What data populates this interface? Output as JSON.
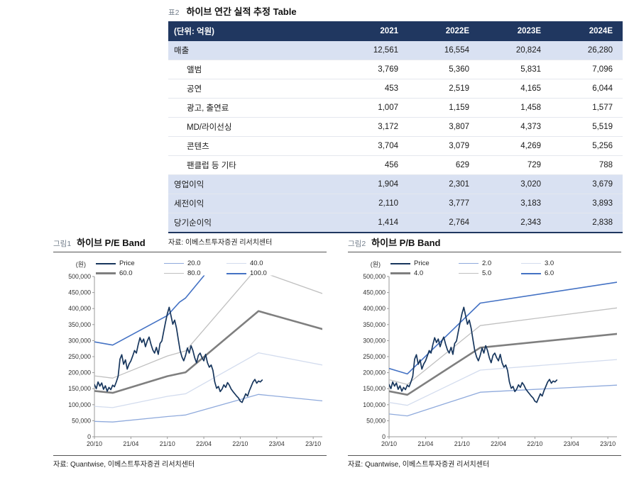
{
  "table_section": {
    "tag": "표2",
    "title": "하이브 연간 실적 추정 Table",
    "source": "자료: 이베스트투자증권 리서치센터",
    "table": {
      "unit_header": "(단위: 억원)",
      "col_headers": [
        "2021",
        "2022E",
        "2023E",
        "2024E"
      ],
      "rows": [
        {
          "label": "매출",
          "indent": false,
          "highlight": true,
          "values": [
            "12,561",
            "16,554",
            "20,824",
            "26,280"
          ]
        },
        {
          "label": "앨범",
          "indent": true,
          "highlight": false,
          "values": [
            "3,769",
            "5,360",
            "5,831",
            "7,096"
          ]
        },
        {
          "label": "공연",
          "indent": true,
          "highlight": false,
          "values": [
            "453",
            "2,519",
            "4,165",
            "6,044"
          ]
        },
        {
          "label": "광고, 출연료",
          "indent": true,
          "highlight": false,
          "values": [
            "1,007",
            "1,159",
            "1,458",
            "1,577"
          ]
        },
        {
          "label": "MD/라이선싱",
          "indent": true,
          "highlight": false,
          "values": [
            "3,172",
            "3,807",
            "4,373",
            "5,519"
          ]
        },
        {
          "label": "콘텐츠",
          "indent": true,
          "highlight": false,
          "values": [
            "3,704",
            "3,079",
            "4,269",
            "5,256"
          ]
        },
        {
          "label": "팬클럽 등 기타",
          "indent": true,
          "highlight": false,
          "values": [
            "456",
            "629",
            "729",
            "788"
          ]
        },
        {
          "label": "영업이익",
          "indent": false,
          "highlight": true,
          "values": [
            "1,904",
            "2,301",
            "3,020",
            "3,679"
          ]
        },
        {
          "label": "세전이익",
          "indent": false,
          "highlight": true,
          "values": [
            "2,110",
            "3,777",
            "3,183",
            "3,893"
          ]
        },
        {
          "label": "당기순이익",
          "indent": false,
          "highlight": true,
          "values": [
            "1,414",
            "2,764",
            "2,343",
            "2,838"
          ]
        }
      ]
    }
  },
  "shared": {
    "price_note": "HYBE share price, KRW, Oct 2020 - early 2023",
    "price": [
      [
        0,
        163000
      ],
      [
        0.3,
        150000
      ],
      [
        0.6,
        171000
      ],
      [
        0.9,
        158000
      ],
      [
        1.2,
        168000
      ],
      [
        1.5,
        148000
      ],
      [
        1.8,
        159000
      ],
      [
        2.1,
        142000
      ],
      [
        2.4,
        154000
      ],
      [
        2.7,
        147000
      ],
      [
        3,
        161000
      ],
      [
        3.3,
        156000
      ],
      [
        3.6,
        171000
      ],
      [
        3.9,
        189000
      ],
      [
        4.2,
        242000
      ],
      [
        4.5,
        256000
      ],
      [
        4.8,
        226000
      ],
      [
        5.1,
        240000
      ],
      [
        5.4,
        211000
      ],
      [
        5.7,
        227000
      ],
      [
        6,
        237000
      ],
      [
        6.3,
        252000
      ],
      [
        6.6,
        269000
      ],
      [
        6.9,
        261000
      ],
      [
        7.2,
        287000
      ],
      [
        7.5,
        309000
      ],
      [
        7.8,
        294000
      ],
      [
        8.1,
        305000
      ],
      [
        8.4,
        281000
      ],
      [
        8.7,
        299000
      ],
      [
        9,
        311000
      ],
      [
        9.3,
        289000
      ],
      [
        9.6,
        271000
      ],
      [
        9.9,
        261000
      ],
      [
        10.2,
        279000
      ],
      [
        10.5,
        257000
      ],
      [
        10.8,
        291000
      ],
      [
        11.1,
        299000
      ],
      [
        11.4,
        329000
      ],
      [
        11.7,
        358000
      ],
      [
        12,
        384000
      ],
      [
        12.3,
        404000
      ],
      [
        12.6,
        377000
      ],
      [
        12.9,
        351000
      ],
      [
        13.2,
        364000
      ],
      [
        13.5,
        339000
      ],
      [
        13.8,
        304000
      ],
      [
        14.1,
        269000
      ],
      [
        14.4,
        249000
      ],
      [
        14.7,
        237000
      ],
      [
        15,
        254000
      ],
      [
        15.3,
        277000
      ],
      [
        15.6,
        261000
      ],
      [
        15.9,
        284000
      ],
      [
        16.2,
        269000
      ],
      [
        16.5,
        247000
      ],
      [
        16.8,
        231000
      ],
      [
        17.1,
        254000
      ],
      [
        17.4,
        261000
      ],
      [
        17.7,
        247000
      ],
      [
        18,
        237000
      ],
      [
        18.3,
        257000
      ],
      [
        18.6,
        231000
      ],
      [
        18.9,
        217000
      ],
      [
        19.2,
        224000
      ],
      [
        19.5,
        207000
      ],
      [
        19.8,
        171000
      ],
      [
        20.1,
        151000
      ],
      [
        20.4,
        157000
      ],
      [
        20.7,
        141000
      ],
      [
        21,
        149000
      ],
      [
        21.3,
        162000
      ],
      [
        21.6,
        154000
      ],
      [
        21.9,
        169000
      ],
      [
        22.2,
        161000
      ],
      [
        22.5,
        149000
      ],
      [
        22.8,
        141000
      ],
      [
        23.1,
        134000
      ],
      [
        23.4,
        127000
      ],
      [
        23.7,
        121000
      ],
      [
        24,
        111000
      ],
      [
        24.3,
        107000
      ],
      [
        24.6,
        121000
      ],
      [
        24.9,
        134000
      ],
      [
        25.2,
        127000
      ],
      [
        25.5,
        144000
      ],
      [
        25.8,
        157000
      ],
      [
        26.1,
        171000
      ],
      [
        26.4,
        179000
      ],
      [
        26.7,
        167000
      ],
      [
        27,
        174000
      ],
      [
        27.3,
        171000
      ],
      [
        27.6,
        177000
      ]
    ]
  },
  "chart_data": [
    {
      "type": "line",
      "name": "pe-band-plot",
      "tag": "그림1",
      "title": "하이브 P/E Band",
      "ylabel": "(원)",
      "source": "자료: Quantwise, 이베스트투자증권 리서치센터",
      "x_unit": "months since 2020-10",
      "x_range": [
        0,
        37.5
      ],
      "y_range": [
        0,
        500000
      ],
      "y_ticks": [
        {
          "value": 0,
          "label": "0"
        },
        {
          "value": 50000,
          "label": "50,000"
        },
        {
          "value": 100000,
          "label": "100,000"
        },
        {
          "value": 150000,
          "label": "150,000"
        },
        {
          "value": 200000,
          "label": "200,000"
        },
        {
          "value": 250000,
          "label": "250,000"
        },
        {
          "value": 300000,
          "label": "300,000"
        },
        {
          "value": 350000,
          "label": "350,000"
        },
        {
          "value": 400000,
          "label": "400,000"
        },
        {
          "value": 450000,
          "label": "450,000"
        },
        {
          "value": 500000,
          "label": "500,000"
        }
      ],
      "x_ticks": [
        {
          "m": 0,
          "label": "20/10"
        },
        {
          "m": 6,
          "label": "21/04"
        },
        {
          "m": 12,
          "label": "21/10"
        },
        {
          "m": 18,
          "label": "22/04"
        },
        {
          "m": 24,
          "label": "22/10"
        },
        {
          "m": 30,
          "label": "23/04"
        },
        {
          "m": 36,
          "label": "23/10"
        }
      ],
      "series": [
        {
          "name": "Price",
          "color": "#17365d",
          "lw": 1.7,
          "points": "shared.price"
        },
        {
          "name": "20.0",
          "color": "#8faadc",
          "lw": 1.3,
          "points": [
            [
              0,
              48000
            ],
            [
              3,
              46000
            ],
            [
              12,
              63000
            ],
            [
              15,
              68000
            ],
            [
              27,
              132000
            ],
            [
              37.5,
              112000
            ]
          ]
        },
        {
          "name": "40.0",
          "color": "#d3dcee",
          "lw": 1.3,
          "points": [
            [
              0,
              95000
            ],
            [
              3,
              91000
            ],
            [
              12,
              126000
            ],
            [
              15,
              134000
            ],
            [
              27,
              262000
            ],
            [
              37.5,
              224000
            ]
          ]
        },
        {
          "name": "60.0",
          "color": "#7f7f7f",
          "lw": 2.6,
          "points": [
            [
              0,
              143000
            ],
            [
              3,
              137000
            ],
            [
              12,
              189000
            ],
            [
              15,
              201000
            ],
            [
              27,
              392000
            ],
            [
              37.5,
              336000
            ]
          ]
        },
        {
          "name": "80.0",
          "color": "#c0c0c0",
          "lw": 1.3,
          "points": [
            [
              0,
              190000
            ],
            [
              3,
              183000
            ],
            [
              12,
              252000
            ],
            [
              15,
              268000
            ],
            [
              26.5,
              521000
            ],
            [
              37.5,
              447000
            ]
          ]
        },
        {
          "name": "100.0",
          "color": "#4472c4",
          "lw": 1.6,
          "points": [
            [
              0,
              296000
            ],
            [
              3,
              286000
            ],
            [
              12,
              378000
            ],
            [
              14,
              420000
            ],
            [
              15,
              433000
            ],
            [
              24,
              640000
            ]
          ]
        }
      ]
    },
    {
      "type": "line",
      "name": "pb-band-plot",
      "tag": "그림2",
      "title": "하이브 P/B Band",
      "ylabel": "(원)",
      "source": "자료: Quantwise, 이베스트투자증권 리서치센터",
      "x_unit": "months since 2020-10",
      "x_range": [
        0,
        37.5
      ],
      "y_range": [
        0,
        500000
      ],
      "y_ticks": [
        {
          "value": 0,
          "label": "0"
        },
        {
          "value": 50000,
          "label": "50,000"
        },
        {
          "value": 100000,
          "label": "100,000"
        },
        {
          "value": 150000,
          "label": "150,000"
        },
        {
          "value": 200000,
          "label": "200,000"
        },
        {
          "value": 250000,
          "label": "250,000"
        },
        {
          "value": 300000,
          "label": "300,000"
        },
        {
          "value": 350000,
          "label": "350,000"
        },
        {
          "value": 400000,
          "label": "400,000"
        },
        {
          "value": 450000,
          "label": "450,000"
        },
        {
          "value": 500000,
          "label": "500,000"
        }
      ],
      "x_ticks": [
        {
          "m": 0,
          "label": "20/10"
        },
        {
          "m": 6,
          "label": "21/04"
        },
        {
          "m": 12,
          "label": "21/10"
        },
        {
          "m": 18,
          "label": "22/04"
        },
        {
          "m": 24,
          "label": "22/10"
        },
        {
          "m": 30,
          "label": "23/04"
        },
        {
          "m": 36,
          "label": "23/10"
        }
      ],
      "series": [
        {
          "name": "Price",
          "color": "#17365d",
          "lw": 1.7,
          "points": "shared.price"
        },
        {
          "name": "2.0",
          "color": "#8faadc",
          "lw": 1.3,
          "points": [
            [
              0,
              71000
            ],
            [
              3,
              65000
            ],
            [
              15,
              139000
            ],
            [
              37.5,
              161000
            ]
          ]
        },
        {
          "name": "3.0",
          "color": "#d3dcee",
          "lw": 1.3,
          "points": [
            [
              0,
              107000
            ],
            [
              3,
              98000
            ],
            [
              15,
              208000
            ],
            [
              37.5,
              241000
            ]
          ]
        },
        {
          "name": "4.0",
          "color": "#7f7f7f",
          "lw": 2.6,
          "points": [
            [
              0,
              142000
            ],
            [
              3,
              131000
            ],
            [
              15,
              278000
            ],
            [
              37.5,
              321000
            ]
          ]
        },
        {
          "name": "5.0",
          "color": "#c0c0c0",
          "lw": 1.3,
          "points": [
            [
              0,
              178000
            ],
            [
              3,
              163000
            ],
            [
              15,
              347000
            ],
            [
              37.5,
              402000
            ]
          ]
        },
        {
          "name": "6.0",
          "color": "#4472c4",
          "lw": 1.6,
          "points": [
            [
              0,
              213000
            ],
            [
              3,
              196000
            ],
            [
              15,
              417000
            ],
            [
              37.5,
              482000
            ]
          ]
        }
      ]
    }
  ]
}
